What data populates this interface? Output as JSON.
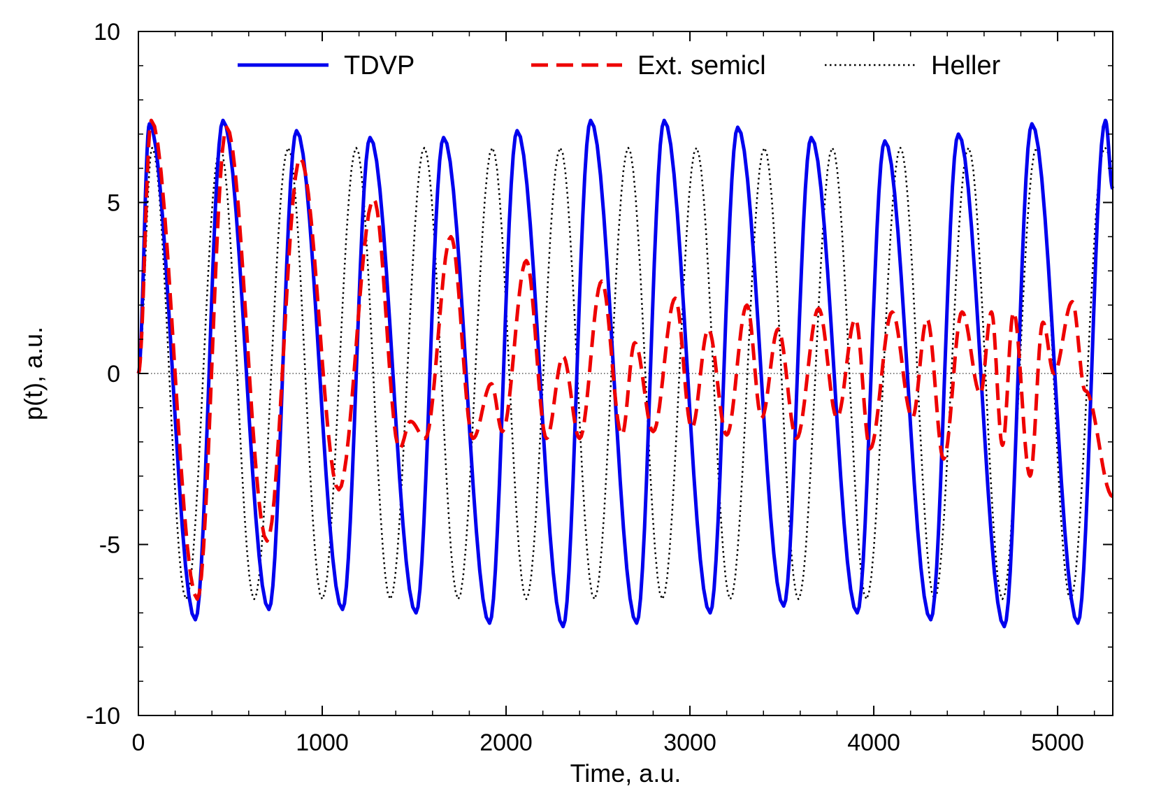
{
  "chart_data": {
    "type": "line",
    "title": "",
    "xlabel": "Time, a.u.",
    "ylabel": "p(t), a.u.",
    "xlim": [
      0,
      5300
    ],
    "ylim": [
      -10,
      10
    ],
    "x_ticks": [
      0,
      1000,
      2000,
      3000,
      4000,
      5000
    ],
    "x_tick_labels": [
      "0",
      "1000",
      "2000",
      "3000",
      "4000",
      "5000"
    ],
    "y_ticks": [
      -10,
      -5,
      0,
      5,
      10
    ],
    "y_tick_labels": [
      "-10",
      "-5",
      "0",
      "5",
      "10"
    ],
    "zero_line": true,
    "legend_position": "top",
    "series": [
      {
        "name": "TDVP",
        "color": "#0000ee",
        "style": "solid",
        "x": [
          0,
          60,
          310,
          460,
          710,
          860,
          1110,
          1260,
          1510,
          1660,
          1910,
          2060,
          2310,
          2460,
          2710,
          2860,
          3110,
          3260,
          3510,
          3660,
          3910,
          4060,
          4310,
          4460,
          4710,
          4860,
          5110,
          5260,
          5300
        ],
        "values": [
          0,
          7.3,
          -7.2,
          7.4,
          -6.9,
          7.1,
          -6.9,
          6.9,
          -7.0,
          6.9,
          -7.3,
          7.1,
          -7.4,
          7.4,
          -7.3,
          7.4,
          -7.0,
          7.2,
          -6.8,
          6.9,
          -7.0,
          6.8,
          -7.2,
          7.0,
          -7.4,
          7.3,
          -7.3,
          7.4,
          5.4
        ]
      },
      {
        "name": "Ext. semicl",
        "color": "#ee0000",
        "style": "dashed",
        "x": [
          0,
          70,
          320,
          480,
          700,
          880,
          1090,
          1280,
          1420,
          1480,
          1560,
          1700,
          1820,
          1920,
          1980,
          2110,
          2220,
          2310,
          2400,
          2520,
          2630,
          2700,
          2800,
          2920,
          3010,
          3100,
          3200,
          3310,
          3390,
          3480,
          3580,
          3700,
          3800,
          3900,
          3980,
          4100,
          4210,
          4290,
          4380,
          4480,
          4580,
          4640,
          4700,
          4760,
          4850,
          4920,
          4980,
          5080,
          5150,
          5300
        ],
        "values": [
          0,
          7.4,
          -6.6,
          7.2,
          -4.9,
          6.3,
          -3.4,
          5.1,
          -2.2,
          -1.4,
          -1.9,
          4.0,
          -1.9,
          -0.3,
          -1.7,
          3.3,
          -1.9,
          0.5,
          -1.9,
          2.7,
          -1.8,
          0.9,
          -1.7,
          2.2,
          -1.6,
          1.3,
          -1.8,
          2.0,
          -1.3,
          1.3,
          -1.9,
          1.9,
          -1.3,
          1.6,
          -2.2,
          1.8,
          -1.3,
          1.6,
          -2.5,
          1.8,
          -0.6,
          1.8,
          -2.1,
          1.8,
          -3.0,
          1.5,
          0.0,
          2.1,
          -0.5,
          -3.6
        ]
      },
      {
        "name": "Heller",
        "color": "#000000",
        "style": "dotted",
        "x": [
          0,
          75,
          260,
          445,
          630,
          815,
          1000,
          1185,
          1370,
          1555,
          1740,
          1925,
          2110,
          2295,
          2480,
          2665,
          2850,
          3035,
          3220,
          3405,
          3590,
          3775,
          3960,
          4145,
          4330,
          4515,
          4700,
          4885,
          5070,
          5255,
          5300
        ],
        "values": [
          0,
          6.6,
          -6.6,
          6.6,
          -6.6,
          6.6,
          -6.6,
          6.6,
          -6.6,
          6.6,
          -6.6,
          6.6,
          -6.6,
          6.6,
          -6.6,
          6.6,
          -6.6,
          6.6,
          -6.6,
          6.6,
          -6.6,
          6.6,
          -6.6,
          6.6,
          -6.6,
          6.6,
          -6.6,
          6.6,
          -6.6,
          6.6,
          6.2
        ]
      }
    ]
  }
}
